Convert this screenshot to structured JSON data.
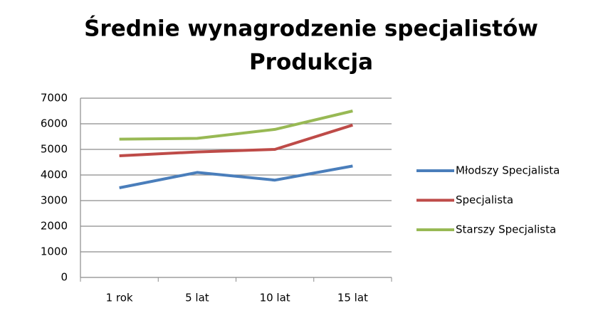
{
  "chart_data": {
    "type": "line",
    "title": "Średnie wynagrodzenie specjalistów",
    "subtitle": "Produkcja",
    "categories": [
      "1 rok",
      "5 lat",
      "10 lat",
      "15 lat"
    ],
    "series": [
      {
        "name": "Młodszy Specjalista",
        "color": "#4a7ebb",
        "values": [
          3500,
          4100,
          3800,
          4350
        ]
      },
      {
        "name": "Specjalista",
        "color": "#be4b48",
        "values": [
          4750,
          4900,
          5000,
          5950
        ]
      },
      {
        "name": "Starszy Specjalista",
        "color": "#98b954",
        "values": [
          5400,
          5430,
          5780,
          6500
        ]
      }
    ],
    "ylim": [
      0,
      7000
    ],
    "yticks": [
      0,
      1000,
      2000,
      3000,
      4000,
      5000,
      6000,
      7000
    ],
    "grid": true,
    "legend": "right"
  }
}
